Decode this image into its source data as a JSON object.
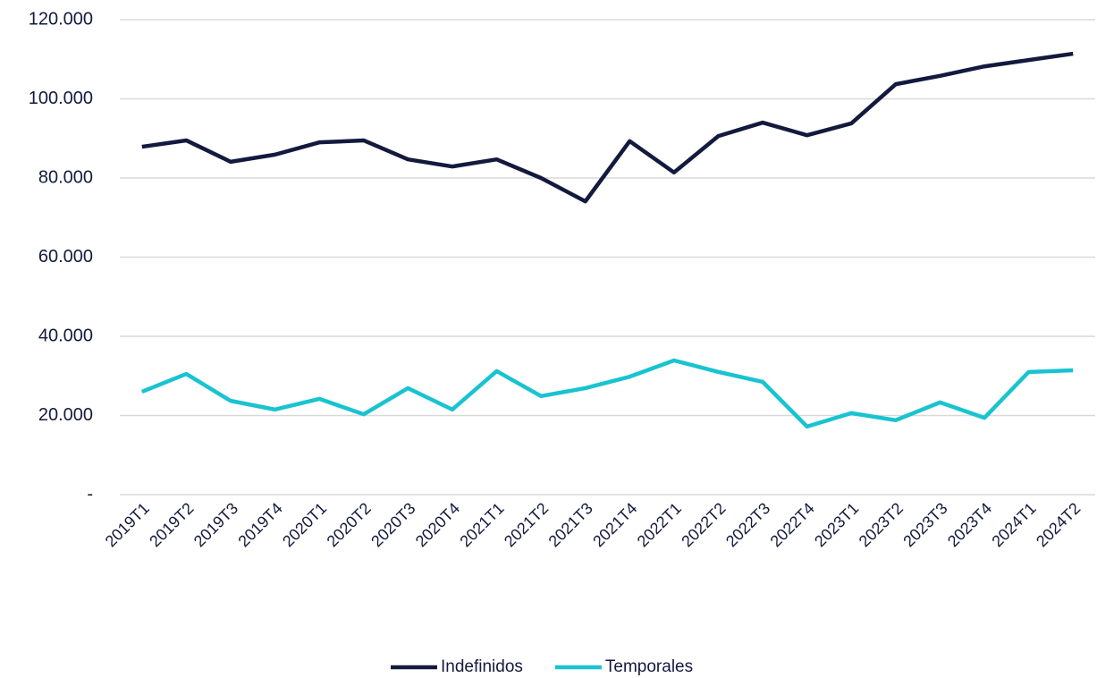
{
  "chart_data": {
    "type": "line",
    "categories": [
      "2019T1",
      "2019T2",
      "2019T3",
      "2019T4",
      "2020T1",
      "2020T2",
      "2020T3",
      "2020T4",
      "2021T1",
      "2021T2",
      "2021T3",
      "2021T4",
      "2022T1",
      "2022T2",
      "2022T3",
      "2022T4",
      "2023T1",
      "2023T2",
      "2023T3",
      "2023T4",
      "2024T1",
      "2024T2"
    ],
    "series": [
      {
        "name": "Indefinidos",
        "color": "#131a3d",
        "values": [
          87900,
          89500,
          84100,
          85900,
          89000,
          89500,
          84700,
          82900,
          84700,
          80000,
          74100,
          89300,
          81400,
          90600,
          94000,
          90800,
          93800,
          103700,
          105800,
          108200,
          109800,
          111400
        ]
      },
      {
        "name": "Temporales",
        "color": "#19c3d0",
        "values": [
          26000,
          30500,
          23700,
          21500,
          24200,
          20300,
          26900,
          21500,
          31200,
          24900,
          26900,
          29800,
          33900,
          31000,
          28500,
          17200,
          20600,
          18800,
          23300,
          19400,
          31000,
          31400
        ]
      }
    ],
    "ylim": [
      0,
      120000
    ],
    "yticks": [
      {
        "value": 0,
        "label": "-"
      },
      {
        "value": 20000,
        "label": "20.000"
      },
      {
        "value": 40000,
        "label": "40.000"
      },
      {
        "value": 60000,
        "label": "60.000"
      },
      {
        "value": 80000,
        "label": "80.000"
      },
      {
        "value": 100000,
        "label": "100.000"
      },
      {
        "value": 120000,
        "label": "120.000"
      }
    ],
    "grid": true,
    "legend": "bottom"
  }
}
